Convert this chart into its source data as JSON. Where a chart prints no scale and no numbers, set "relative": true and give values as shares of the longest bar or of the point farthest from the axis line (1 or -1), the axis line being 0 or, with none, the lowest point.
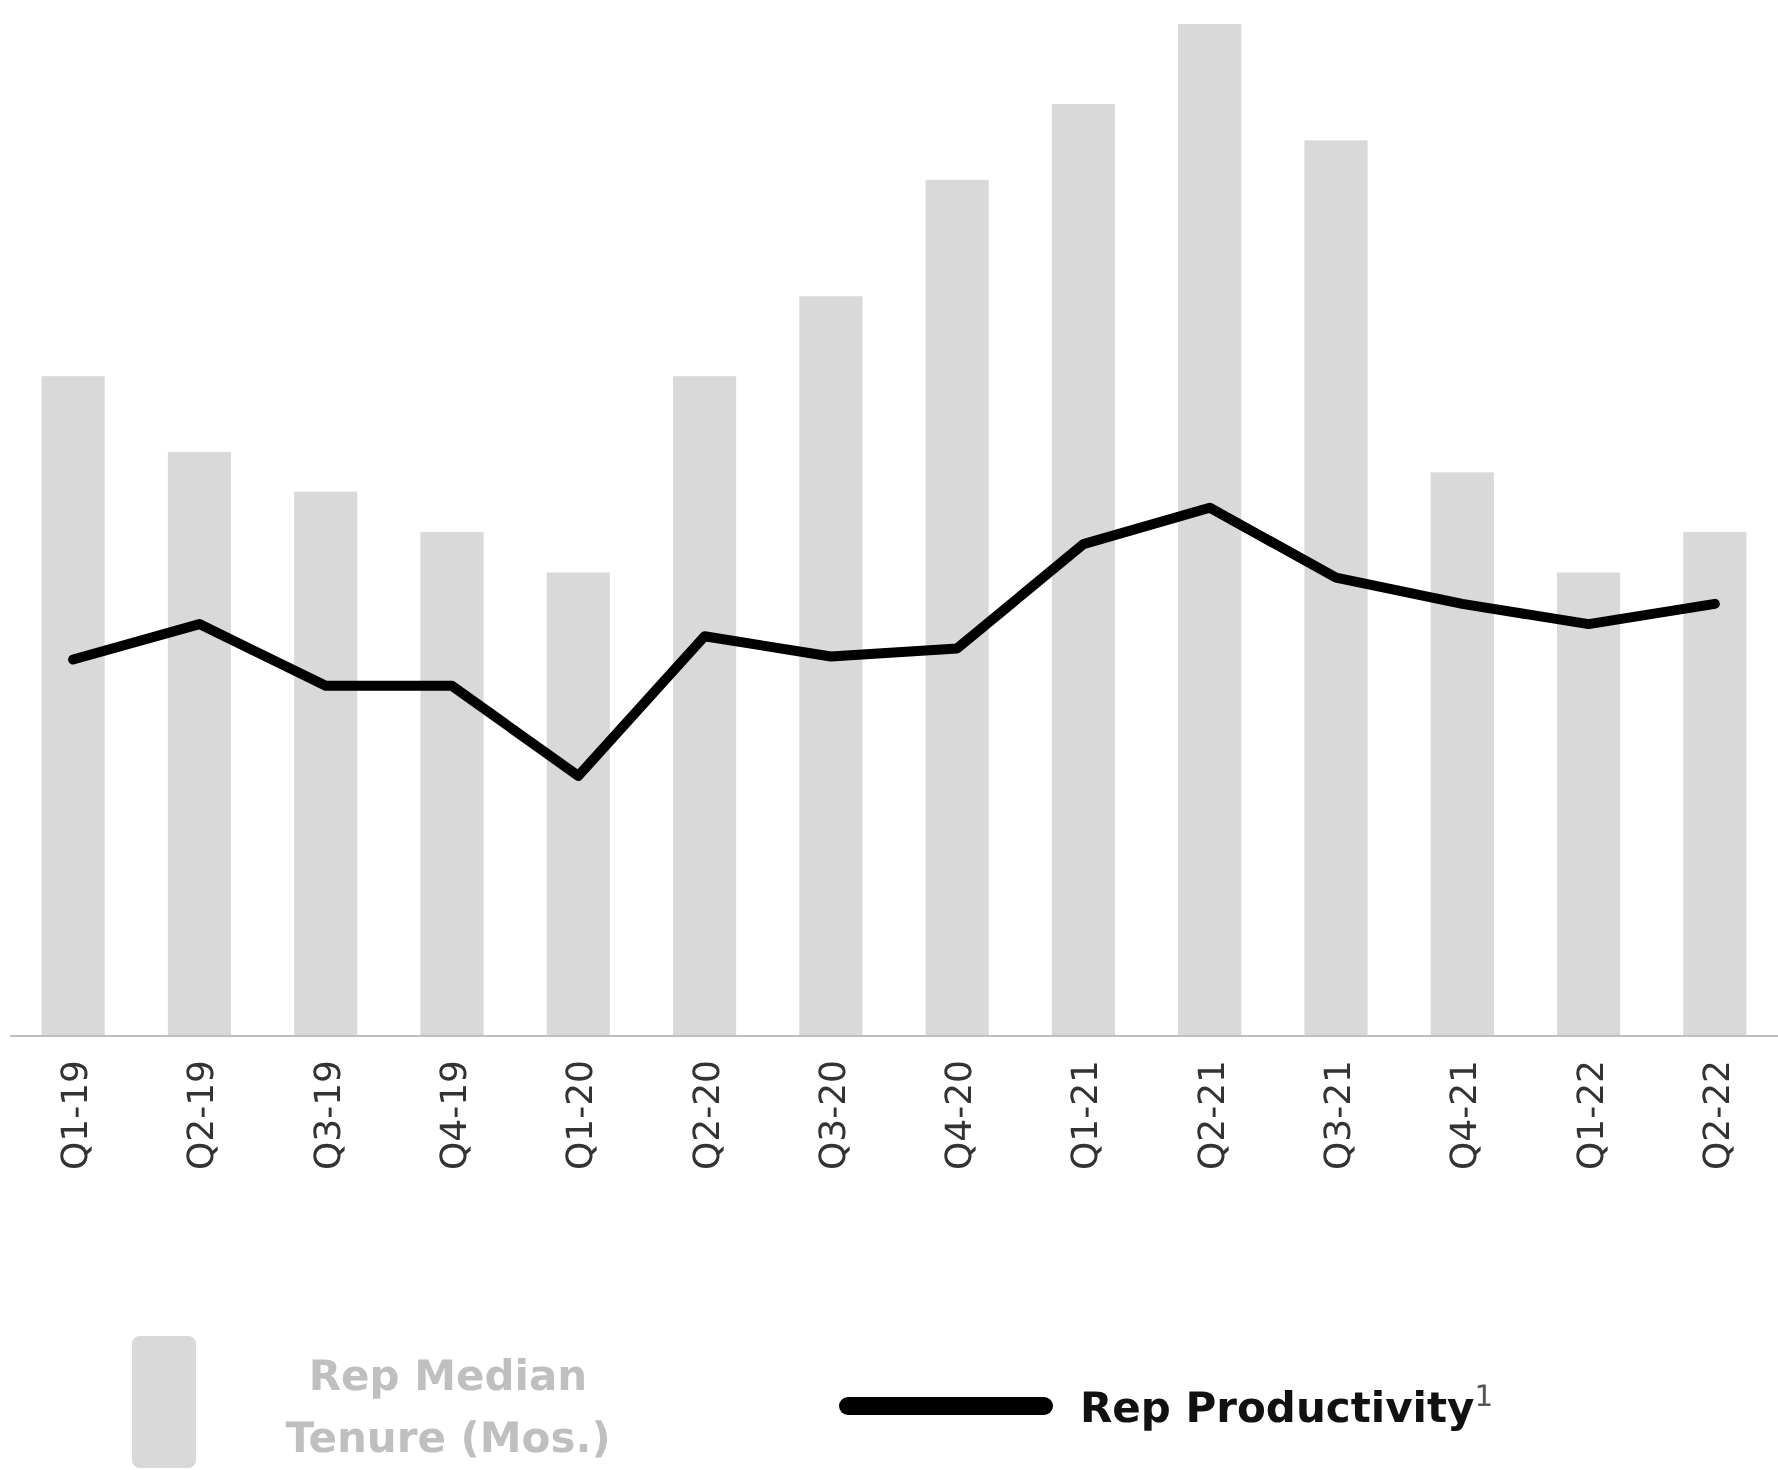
{
  "chart_data": {
    "type": "bar",
    "relative": true,
    "categories": [
      "Q1-19",
      "Q2-19",
      "Q3-19",
      "Q4-19",
      "Q1-20",
      "Q2-20",
      "Q3-20",
      "Q4-20",
      "Q1-21",
      "Q2-21",
      "Q3-21",
      "Q4-21",
      "Q1-22",
      "Q2-22"
    ],
    "series": [
      {
        "name": "Rep Median Tenure (Mos.)",
        "color": "#d9d9d9",
        "values": [
          0.652,
          0.577,
          0.538,
          0.498,
          0.458,
          0.652,
          0.731,
          0.846,
          0.921,
          1,
          0.885,
          0.557,
          0.458,
          0.498
        ]
      },
      {
        "name": "Rep Productivity$^{1}$",
        "type": "line",
        "color": "#000000",
        "values": [
          0.372,
          0.407,
          0.346,
          0.346,
          0.257,
          0.395,
          0.375,
          0.383,
          0.486,
          0.522,
          0.453,
          0.427,
          0.407,
          0.427
        ]
      }
    ],
    "legend": "bottom",
    "line_style": "solid",
    "marker": "none"
  }
}
